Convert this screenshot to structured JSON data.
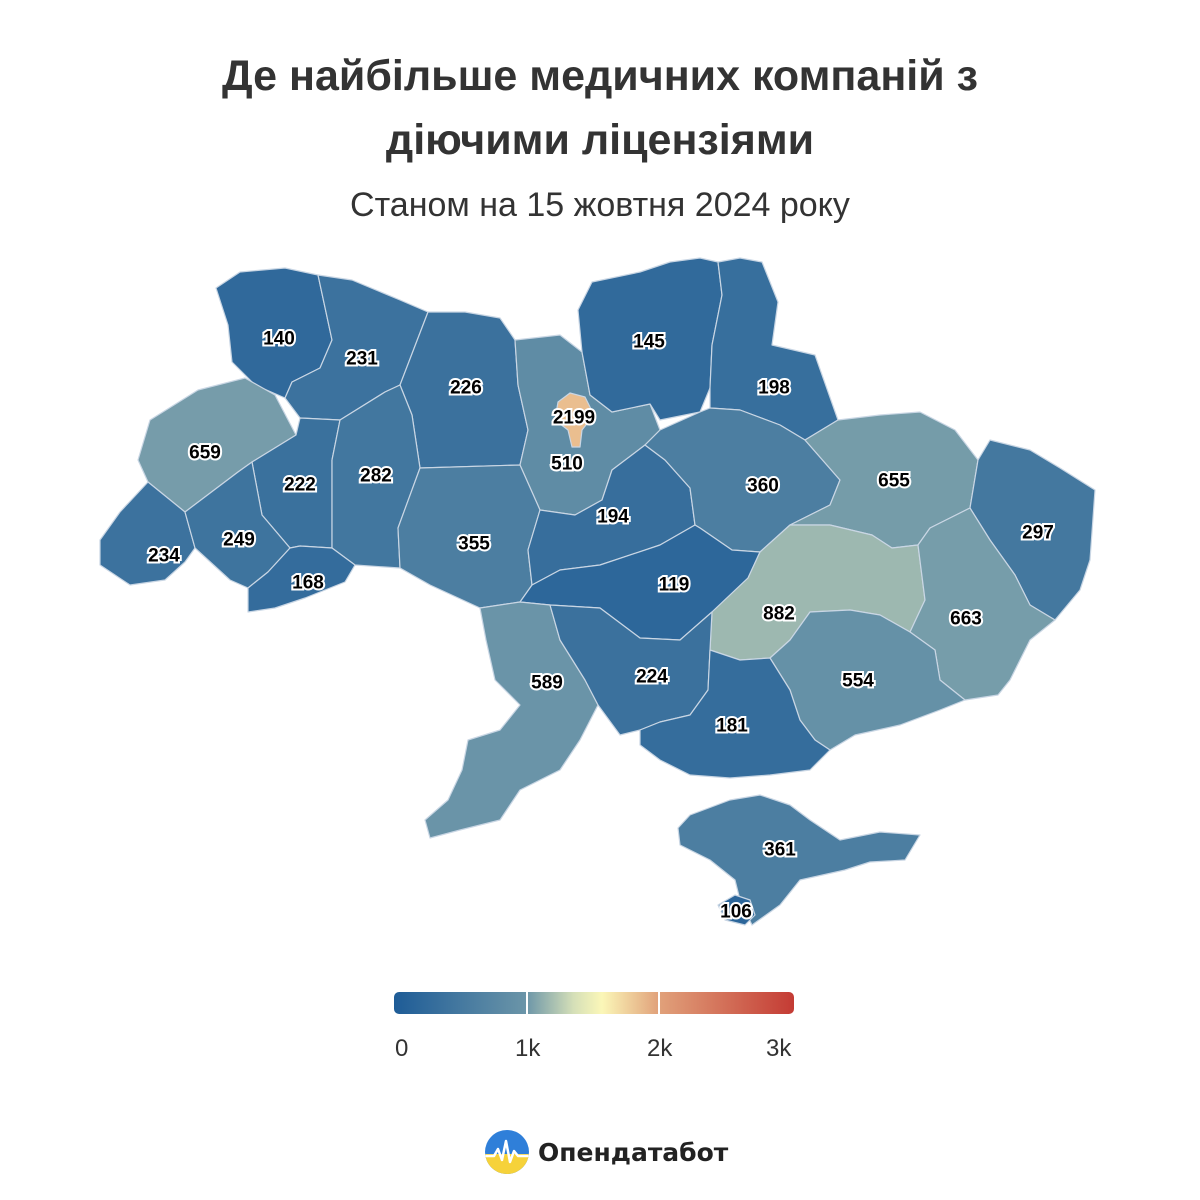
{
  "title": {
    "line1": "Де найбільше медичних компаній з",
    "line2": "діючими ліцензіями"
  },
  "subtitle": "Станом на 15 жовтня 2024 року",
  "map": {
    "type": "choropleth",
    "scale": {
      "min": 0,
      "max": 3000,
      "colors": [
        "#1e5c97",
        "#6b95a8",
        "#d6e0b8",
        "#fbf7b8",
        "#e1a27b",
        "#c43b34"
      ]
    },
    "regions": [
      {
        "id": "volyn",
        "value": 140
      },
      {
        "id": "rivne",
        "value": 231
      },
      {
        "id": "zhytomyr",
        "value": 226
      },
      {
        "id": "kyiv-oblast",
        "value": 510
      },
      {
        "id": "kyiv-city",
        "value": 2199
      },
      {
        "id": "chernihiv",
        "value": 145
      },
      {
        "id": "sumy",
        "value": 198
      },
      {
        "id": "lviv",
        "value": 659
      },
      {
        "id": "ternopil",
        "value": 222
      },
      {
        "id": "khmelnytskyi",
        "value": 282
      },
      {
        "id": "vinnytsia",
        "value": 355
      },
      {
        "id": "cherkasy",
        "value": 194
      },
      {
        "id": "poltava",
        "value": 360
      },
      {
        "id": "kharkiv",
        "value": 655
      },
      {
        "id": "luhansk",
        "value": 297
      },
      {
        "id": "zakarpattia",
        "value": 234
      },
      {
        "id": "ivano-frankivsk",
        "value": 249
      },
      {
        "id": "chernivtsi",
        "value": 168
      },
      {
        "id": "kirovohrad",
        "value": 119
      },
      {
        "id": "dnipropetrovsk",
        "value": 882
      },
      {
        "id": "donetsk",
        "value": 663
      },
      {
        "id": "odesa",
        "value": 589
      },
      {
        "id": "mykolaiv",
        "value": 224
      },
      {
        "id": "zaporizhzhia",
        "value": 554
      },
      {
        "id": "kherson",
        "value": 181
      },
      {
        "id": "crimea",
        "value": 361
      },
      {
        "id": "sevastopol",
        "value": 106
      }
    ]
  },
  "legend": {
    "ticks": [
      "0",
      "1k",
      "2k",
      "3k"
    ]
  },
  "brand": {
    "name": "Опендатабот",
    "logo_icon": "opendatabot-logo-icon"
  }
}
